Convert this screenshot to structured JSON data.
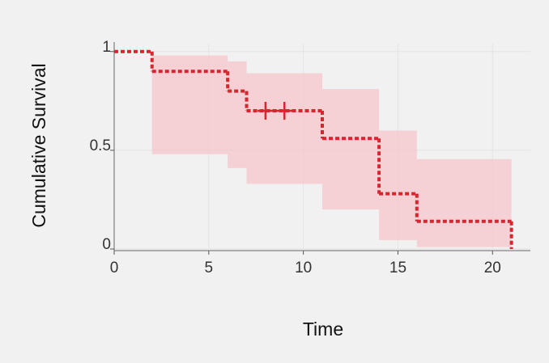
{
  "chart_data": {
    "type": "step",
    "x_label": "Time",
    "y_label": "Cumulative Survival",
    "xlim": [
      0,
      22
    ],
    "ylim": [
      0,
      1.04
    ],
    "xticks": [
      0,
      5,
      10,
      15,
      20
    ],
    "yticks": [
      0,
      0.5,
      1
    ],
    "grid": true,
    "color": "#d7262f",
    "band_color": "#f5c6cb",
    "x": [
      0,
      2,
      6,
      7,
      11,
      14,
      16,
      21
    ],
    "values": [
      1,
      0.9,
      0.8,
      0.7,
      0.56,
      0.28,
      0.14,
      0
    ],
    "ci_upper": [
      null,
      0.98,
      0.95,
      0.89,
      0.81,
      0.6,
      0.455,
      null
    ],
    "ci_lower": [
      null,
      0.48,
      0.41,
      0.33,
      0.2,
      0.045,
      0.01,
      null
    ],
    "censored": {
      "x": [
        8,
        9
      ],
      "values": [
        0.7,
        0.7
      ]
    }
  }
}
